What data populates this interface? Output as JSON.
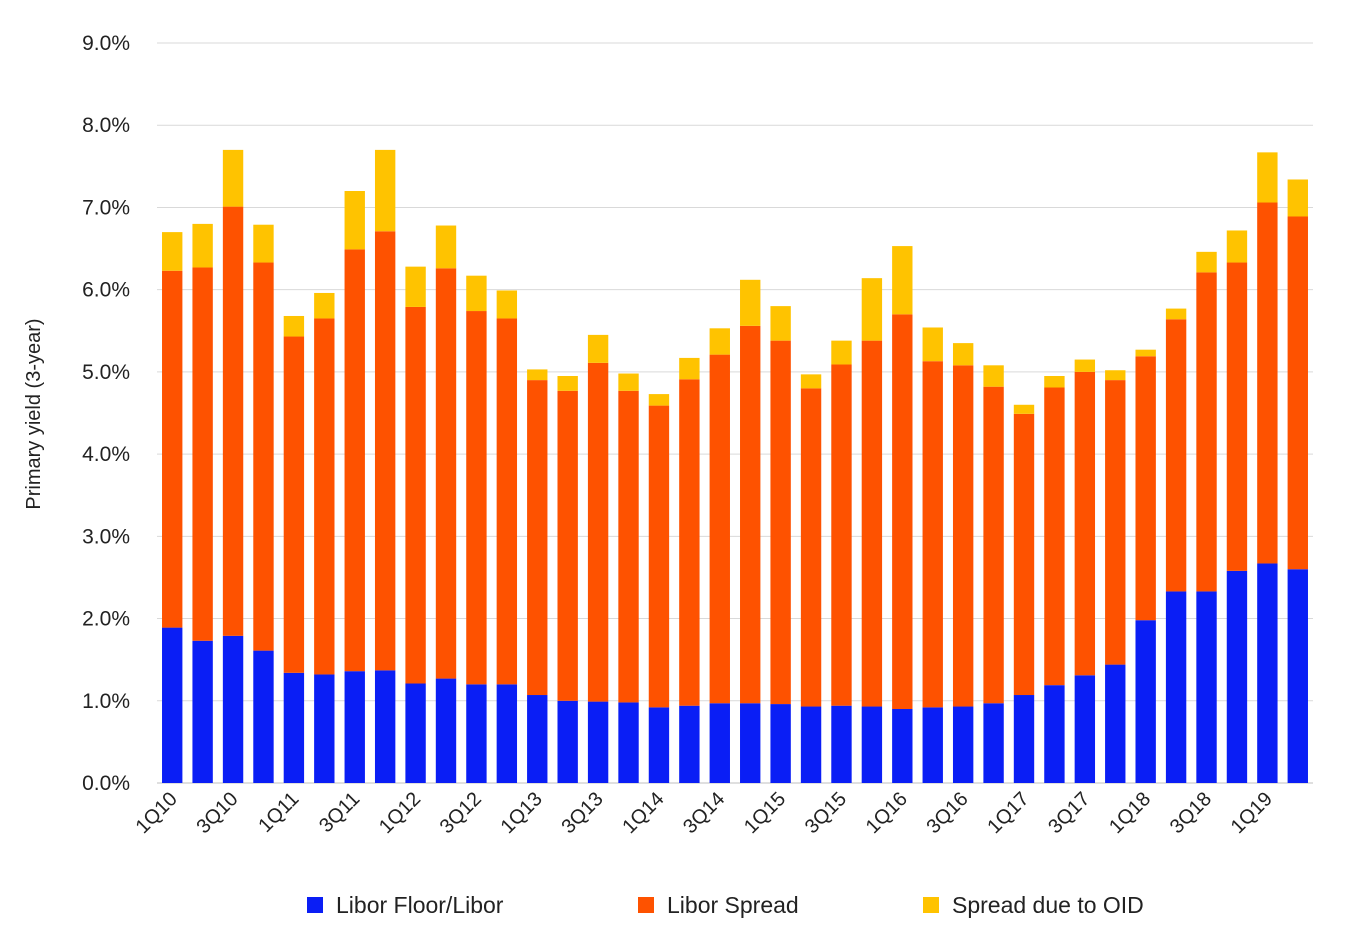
{
  "chart_data": {
    "type": "bar",
    "stacked": true,
    "title": "",
    "xlabel": "",
    "ylabel": "Primary yield (3-year)",
    "ylim": [
      0,
      9
    ],
    "yticks": [
      "0.0%",
      "1.0%",
      "2.0%",
      "3.0%",
      "4.0%",
      "5.0%",
      "6.0%",
      "7.0%",
      "8.0%",
      "9.0%"
    ],
    "grid": true,
    "legend_position": "bottom",
    "categories": [
      "1Q10",
      "2Q10",
      "3Q10",
      "4Q10",
      "1Q11",
      "2Q11",
      "3Q11",
      "4Q11",
      "1Q12",
      "2Q12",
      "3Q12",
      "4Q12",
      "1Q13",
      "2Q13",
      "3Q13",
      "4Q13",
      "1Q14",
      "2Q14",
      "3Q14",
      "4Q14",
      "1Q15",
      "2Q15",
      "3Q15",
      "4Q15",
      "1Q16",
      "2Q16",
      "3Q16",
      "4Q16",
      "1Q17",
      "2Q17",
      "3Q17",
      "4Q17",
      "1Q18",
      "2Q18",
      "3Q18",
      "4Q18",
      "1Q19",
      "2Q19"
    ],
    "xtick_labels": [
      "1Q10",
      "3Q10",
      "1Q11",
      "3Q11",
      "1Q12",
      "3Q12",
      "1Q13",
      "3Q13",
      "1Q14",
      "3Q14",
      "1Q15",
      "3Q15",
      "1Q16",
      "3Q16",
      "1Q17",
      "3Q17",
      "1Q18",
      "3Q18",
      "1Q19"
    ],
    "series": [
      {
        "name": "Libor Floor/Libor",
        "color": "#0a1ef5",
        "values": [
          1.89,
          1.73,
          1.79,
          1.61,
          1.34,
          1.32,
          1.36,
          1.37,
          1.21,
          1.27,
          1.2,
          1.2,
          1.07,
          1.0,
          0.99,
          0.98,
          0.92,
          0.94,
          0.97,
          0.97,
          0.96,
          0.93,
          0.94,
          0.93,
          0.9,
          0.92,
          0.93,
          0.97,
          1.07,
          1.19,
          1.31,
          1.44,
          1.98,
          2.33,
          2.33,
          2.58,
          2.67,
          2.6
        ]
      },
      {
        "name": "Libor Spread",
        "color": "#fe5200",
        "values": [
          4.34,
          4.54,
          5.22,
          4.72,
          4.09,
          4.33,
          5.13,
          5.34,
          4.58,
          4.99,
          4.54,
          4.45,
          3.83,
          3.77,
          4.12,
          3.79,
          3.67,
          3.97,
          4.24,
          4.59,
          4.42,
          3.87,
          4.15,
          4.45,
          4.8,
          4.21,
          4.15,
          3.85,
          3.42,
          3.62,
          3.69,
          3.46,
          3.21,
          3.31,
          3.88,
          3.75,
          4.39,
          4.29
        ]
      },
      {
        "name": "Spread due to OID",
        "color": "#ffc300",
        "values": [
          0.47,
          0.53,
          0.69,
          0.46,
          0.25,
          0.31,
          0.71,
          0.99,
          0.49,
          0.52,
          0.43,
          0.34,
          0.13,
          0.18,
          0.34,
          0.21,
          0.14,
          0.26,
          0.32,
          0.56,
          0.42,
          0.17,
          0.29,
          0.76,
          0.83,
          0.41,
          0.27,
          0.26,
          0.11,
          0.14,
          0.15,
          0.12,
          0.08,
          0.13,
          0.25,
          0.39,
          0.61,
          0.45
        ]
      }
    ]
  }
}
